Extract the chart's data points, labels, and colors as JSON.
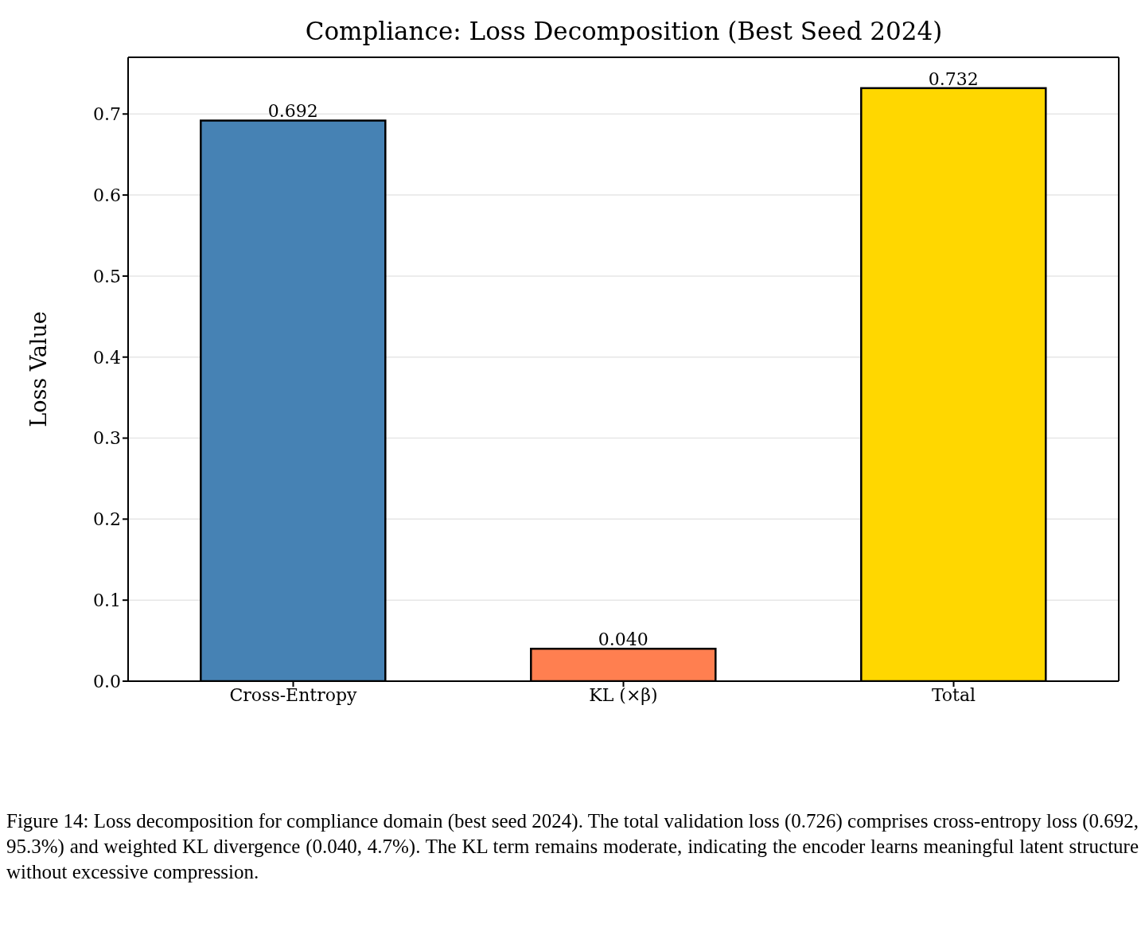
{
  "chart_data": {
    "type": "bar",
    "title": "Compliance: Loss Decomposition (Best Seed 2024)",
    "ylabel": "Loss Value",
    "categories": [
      "Cross-Entropy",
      "KL (×β)",
      "Total"
    ],
    "values": [
      0.692,
      0.04,
      0.732
    ],
    "value_labels": [
      "0.692",
      "0.040",
      "0.732"
    ],
    "colors": [
      "#4682b4",
      "#ff7f50",
      "#ffd700"
    ],
    "ylim": [
      0,
      0.77
    ],
    "yticks": [
      {
        "value": 0,
        "label": "0.0"
      },
      0.1,
      0.2,
      0.3,
      0.4,
      0.5,
      0.6,
      0.7
    ],
    "grid": "y",
    "annotations": [
      "Figure 14: Loss decomposition for compliance domain (best seed 2024). The total validation loss (0.726) comprises cross-entropy loss (0.692, 95.3%) and weighted KL divergence (0.040, 4.7%). The KL term remains moderate, indicating the encoder learns meaningful latent structure without excessive compression."
    ]
  }
}
